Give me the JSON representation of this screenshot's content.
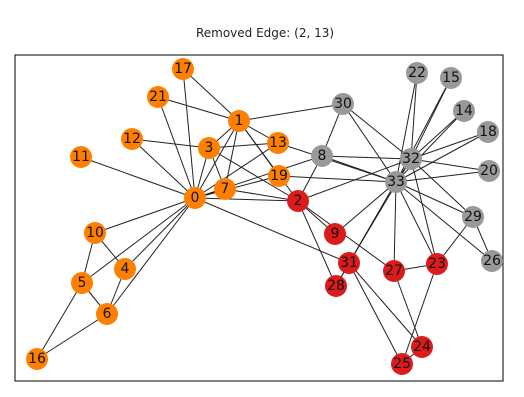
{
  "title": "Removed Edge: (2, 13)",
  "nodes": [
    {
      "label": "0",
      "color": "#ff8000"
    },
    {
      "label": "1",
      "color": "#ff8000"
    },
    {
      "label": "2",
      "color": "#dc1c1c"
    },
    {
      "label": "3",
      "color": "#ff8000"
    },
    {
      "label": "4",
      "color": "#ff8000"
    },
    {
      "label": "5",
      "color": "#ff8000"
    },
    {
      "label": "6",
      "color": "#ff8000"
    },
    {
      "label": "7",
      "color": "#ff8000"
    },
    {
      "label": "8",
      "color": "#999999"
    },
    {
      "label": "9",
      "color": "#dc1c1c"
    },
    {
      "label": "10",
      "color": "#ff8000"
    },
    {
      "label": "11",
      "color": "#ff8000"
    },
    {
      "label": "12",
      "color": "#ff8000"
    },
    {
      "label": "13",
      "color": "#ff8000"
    },
    {
      "label": "14",
      "color": "#999999"
    },
    {
      "label": "15",
      "color": "#999999"
    },
    {
      "label": "16",
      "color": "#ff8000"
    },
    {
      "label": "17",
      "color": "#ff8000"
    },
    {
      "label": "18",
      "color": "#999999"
    },
    {
      "label": "19",
      "color": "#ff8000"
    },
    {
      "label": "20",
      "color": "#999999"
    },
    {
      "label": "21",
      "color": "#ff8000"
    },
    {
      "label": "22",
      "color": "#999999"
    },
    {
      "label": "23",
      "color": "#dc1c1c"
    },
    {
      "label": "24",
      "color": "#dc1c1c"
    },
    {
      "label": "25",
      "color": "#dc1c1c"
    },
    {
      "label": "26",
      "color": "#999999"
    },
    {
      "label": "27",
      "color": "#dc1c1c"
    },
    {
      "label": "28",
      "color": "#dc1c1c"
    },
    {
      "label": "29",
      "color": "#999999"
    },
    {
      "label": "30",
      "color": "#999999"
    },
    {
      "label": "31",
      "color": "#dc1c1c"
    },
    {
      "label": "32",
      "color": "#999999"
    },
    {
      "label": "33",
      "color": "#999999"
    }
  ]
}
